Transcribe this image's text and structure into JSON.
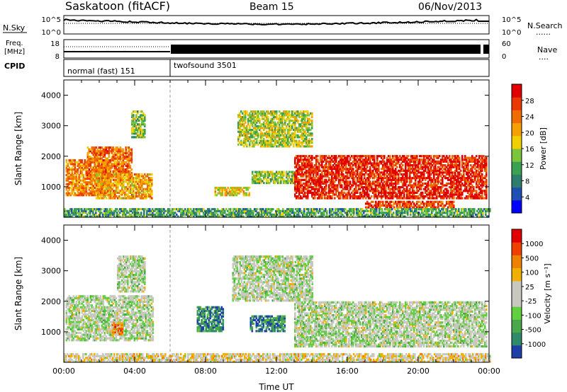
{
  "header": {
    "station": "Saskatoon (fitACF)",
    "beam": "Beam 15",
    "date": "06/Nov/2013"
  },
  "status_panels": {
    "nsky": {
      "label": "N.Sky",
      "left_ticks": [
        "10^5",
        "10^0"
      ],
      "right_ticks": [
        "10^5",
        "10^0"
      ],
      "right_label": "N.Search",
      "right_legend_line": "......"
    },
    "freq": {
      "label_line1": "Freq.",
      "label_line2": "[MHz]",
      "left_ticks": [
        "18",
        "8"
      ],
      "right_ticks": [
        "60",
        "0"
      ],
      "right_label": "Nave",
      "right_legend_line": "...."
    },
    "cpid": {
      "label": "CPID",
      "modes": [
        {
          "name": "normal (fast) 151",
          "start_hour": 0
        },
        {
          "name": "twofsound 3501",
          "start_hour": 6
        }
      ]
    }
  },
  "chart_data": [
    {
      "type": "heatmap",
      "name": "power",
      "ylabel": "Slant Range [km]",
      "ylim": [
        0,
        4500
      ],
      "yticks": [
        "1000",
        "2000",
        "3000",
        "4000"
      ],
      "xlim": [
        0,
        24
      ],
      "colorbar": {
        "label": "Power [dB]",
        "ticks": [
          "4",
          "8",
          "12",
          "16",
          "20",
          "24",
          "28"
        ],
        "colors": [
          "#0000ff",
          "#1e50b4",
          "#2e7e6e",
          "#3aa052",
          "#7cc43c",
          "#f0d000",
          "#f5a000",
          "#ef6c00",
          "#e93800",
          "#e00000"
        ]
      },
      "regions": [
        {
          "t0": 0.1,
          "t1": 2.6,
          "r0": 700,
          "r1": 1900,
          "level": 0.7
        },
        {
          "t0": 1.3,
          "t1": 3.8,
          "r0": 1300,
          "r1": 2300,
          "level": 0.75
        },
        {
          "t0": 1.8,
          "t1": 5.0,
          "r0": 600,
          "r1": 1400,
          "level": 0.65
        },
        {
          "t0": 3.8,
          "t1": 4.6,
          "r0": 2600,
          "r1": 3500,
          "level": 0.45
        },
        {
          "t0": 8.5,
          "t1": 10.5,
          "r0": 700,
          "r1": 1000,
          "level": 0.55
        },
        {
          "t0": 10.6,
          "t1": 13.0,
          "r0": 1100,
          "r1": 1500,
          "level": 0.45
        },
        {
          "t0": 9.8,
          "t1": 14.0,
          "r0": 2300,
          "r1": 3500,
          "level": 0.5
        },
        {
          "t0": 13.0,
          "t1": 23.8,
          "r0": 600,
          "r1": 2000,
          "level": 0.9
        },
        {
          "t0": 17.0,
          "t1": 22.0,
          "r0": 300,
          "r1": 500,
          "level": 0.85
        },
        {
          "t0": 0.0,
          "t1": 24.0,
          "r0": 0,
          "r1": 250,
          "level": 0.35
        }
      ]
    },
    {
      "type": "heatmap",
      "name": "velocity",
      "ylabel": "Slant Range [km]",
      "ylim": [
        0,
        4500
      ],
      "yticks": [
        "1000",
        "2000",
        "3000",
        "4000"
      ],
      "xlim": [
        0,
        24
      ],
      "xticks": [
        "00:00",
        "04:00",
        "08:00",
        "12:00",
        "16:00",
        "20:00",
        "00:00"
      ],
      "xlabel": "Time UT",
      "colorbar": {
        "label": "Velocity [m s⁻¹]",
        "ticks": [
          "1000",
          "500",
          "100",
          "25",
          "-25",
          "-100",
          "-500",
          "-1000"
        ],
        "colors": [
          "#1f3fa8",
          "#2e8a6a",
          "#4aa84a",
          "#60d040",
          "#c8c8c0",
          "#c8c8c0",
          "#f0b000",
          "#f08000",
          "#f04000",
          "#e00000"
        ]
      },
      "regions": [
        {
          "t0": 0.1,
          "t1": 5.0,
          "r0": 700,
          "r1": 2200,
          "level": 0.45
        },
        {
          "t0": 3.0,
          "t1": 4.6,
          "r0": 2300,
          "r1": 3500,
          "level": 0.45
        },
        {
          "t0": 2.7,
          "t1": 3.3,
          "r0": 900,
          "r1": 1300,
          "level": 0.75
        },
        {
          "t0": 7.5,
          "t1": 9.0,
          "r0": 1000,
          "r1": 1800,
          "level": 0.15
        },
        {
          "t0": 10.5,
          "t1": 12.5,
          "r0": 1000,
          "r1": 1500,
          "level": 0.15
        },
        {
          "t0": 9.5,
          "t1": 14.0,
          "r0": 2000,
          "r1": 3500,
          "level": 0.45
        },
        {
          "t0": 13.0,
          "t1": 23.8,
          "r0": 500,
          "r1": 2000,
          "level": 0.45
        },
        {
          "t0": 0.0,
          "t1": 24.0,
          "r0": 0,
          "r1": 250,
          "level": 0.55
        }
      ]
    }
  ]
}
